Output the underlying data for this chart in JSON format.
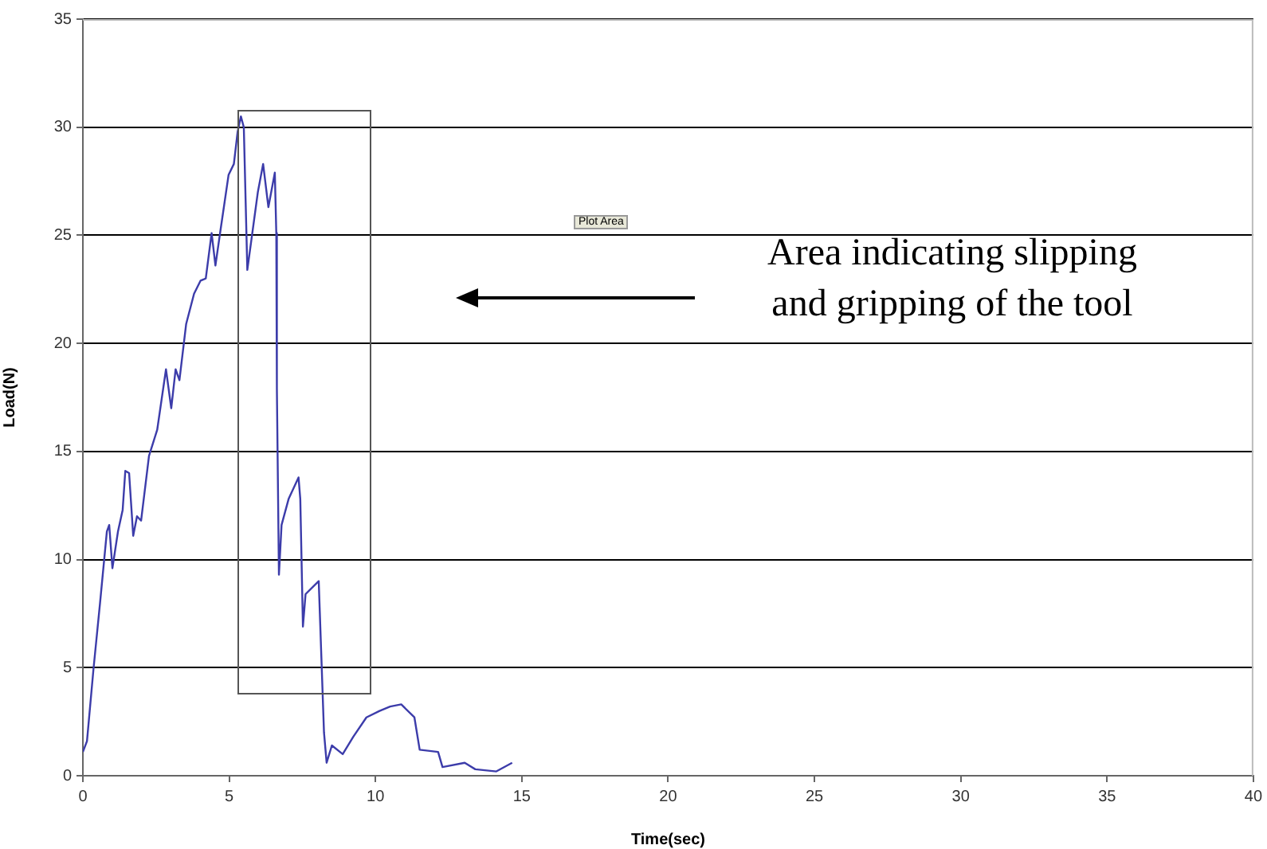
{
  "chart_data": {
    "type": "line",
    "xlabel": "Time(sec)",
    "ylabel": "Load(N)",
    "annotations": [
      "Area indicating slipping\nand gripping of the tool",
      "Plot Area"
    ],
    "x": [
      0,
      0.14,
      0.36,
      0.58,
      0.82,
      0.9,
      1.01,
      1.2,
      1.36,
      1.45,
      1.58,
      1.72,
      1.85,
      1.99,
      2.26,
      2.54,
      2.84,
      3.02,
      3.17,
      3.3,
      3.53,
      3.8,
      4.02,
      4.2,
      4.4,
      4.53,
      4.71,
      4.98,
      5.16,
      5.29,
      5.4,
      5.5,
      5.62,
      5.76,
      5.98,
      6.16,
      6.34,
      6.56,
      6.61,
      6.63,
      6.7,
      6.79,
      7.03,
      7.37,
      7.43,
      7.52,
      7.61,
      8.06,
      8.15,
      8.24,
      8.33,
      8.51,
      8.88,
      9.24,
      9.69,
      10.14,
      10.5,
      10.88,
      11.33,
      11.51,
      12.14,
      12.29,
      13.05,
      13.41,
      14.13,
      14.67
    ],
    "series": [
      {
        "color": "#3c3caa",
        "values": [
          1.1,
          1.6,
          4.9,
          7.9,
          11.3,
          11.6,
          9.6,
          11.3,
          12.3,
          14.1,
          14.0,
          11.1,
          12.0,
          11.8,
          14.8,
          16.0,
          18.8,
          17.0,
          18.8,
          18.3,
          20.9,
          22.3,
          22.9,
          23.0,
          25.1,
          23.6,
          25.3,
          27.8,
          28.3,
          29.8,
          30.5,
          30.0,
          23.4,
          24.8,
          27.0,
          28.3,
          26.3,
          27.9,
          25.1,
          17.9,
          9.3,
          11.6,
          12.8,
          13.8,
          12.8,
          6.9,
          8.4,
          9.0,
          5.5,
          2.0,
          0.6,
          1.4,
          1.0,
          1.8,
          2.7,
          3.0,
          3.2,
          3.3,
          2.7,
          1.2,
          1.1,
          0.4,
          0.6,
          0.3,
          0.2,
          0.6
        ]
      }
    ],
    "xlim": [
      0,
      40
    ],
    "xticks": [
      0,
      5,
      10,
      15,
      20,
      25,
      30,
      35,
      40
    ],
    "ylim": [
      0,
      35
    ],
    "yticks": [
      0,
      5,
      10,
      15,
      20,
      25,
      30,
      35
    ],
    "grid": "y",
    "legend": false,
    "marker": "none",
    "line_style": "solid"
  }
}
